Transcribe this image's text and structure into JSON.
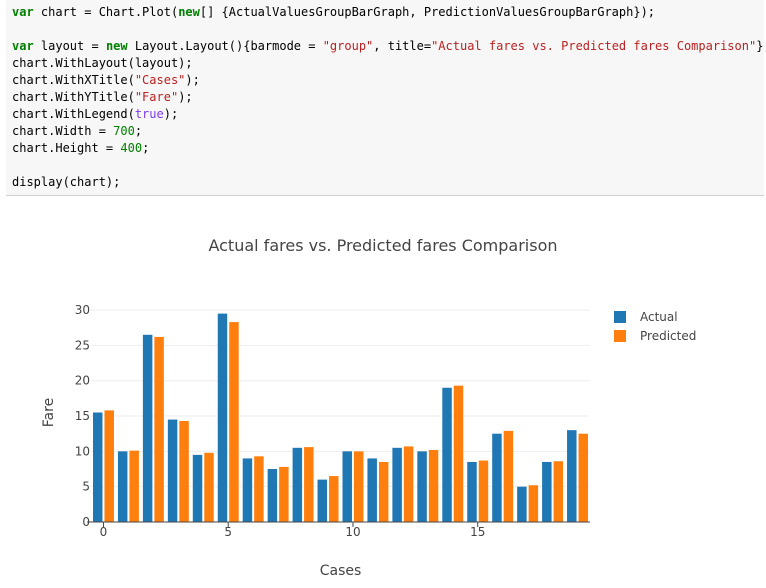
{
  "code": {
    "lines": [
      [
        {
          "t": "var",
          "c": "kw"
        },
        {
          "t": " chart = Chart.Plot(",
          "c": ""
        },
        {
          "t": "new",
          "c": "kw"
        },
        {
          "t": "[] {ActualValuesGroupBarGraph, PredictionValuesGroupBarGraph});",
          "c": ""
        }
      ],
      [
        {
          "t": "",
          "c": ""
        }
      ],
      [
        {
          "t": "var",
          "c": "kw"
        },
        {
          "t": " layout = ",
          "c": ""
        },
        {
          "t": "new",
          "c": "kw"
        },
        {
          "t": " Layout.Layout(){barmode = ",
          "c": ""
        },
        {
          "t": "\"group\"",
          "c": "str"
        },
        {
          "t": ", title=",
          "c": ""
        },
        {
          "t": "\"Actual fares vs. Predicted fares Comparison\"",
          "c": "str"
        },
        {
          "t": "};",
          "c": ""
        }
      ],
      [
        {
          "t": "chart.WithLayout(layout);",
          "c": ""
        }
      ],
      [
        {
          "t": "chart.WithXTitle(",
          "c": ""
        },
        {
          "t": "\"Cases\"",
          "c": "str"
        },
        {
          "t": ");",
          "c": ""
        }
      ],
      [
        {
          "t": "chart.WithYTitle(",
          "c": ""
        },
        {
          "t": "\"Fare\"",
          "c": "str"
        },
        {
          "t": ");",
          "c": ""
        }
      ],
      [
        {
          "t": "chart.WithLegend(",
          "c": ""
        },
        {
          "t": "true",
          "c": "builtin"
        },
        {
          "t": ");",
          "c": ""
        }
      ],
      [
        {
          "t": "chart.Width = ",
          "c": ""
        },
        {
          "t": "700",
          "c": "num"
        },
        {
          "t": ";",
          "c": ""
        }
      ],
      [
        {
          "t": "chart.Height = ",
          "c": ""
        },
        {
          "t": "400",
          "c": "num"
        },
        {
          "t": ";",
          "c": ""
        }
      ],
      [
        {
          "t": "",
          "c": ""
        }
      ],
      [
        {
          "t": "display(chart);",
          "c": ""
        }
      ]
    ]
  },
  "chart_data": {
    "type": "bar",
    "title": "Actual fares vs. Predicted fares Comparison",
    "xlabel": "Cases",
    "ylabel": "Fare",
    "barmode": "group",
    "x": [
      0,
      1,
      2,
      3,
      4,
      5,
      6,
      7,
      8,
      9,
      10,
      11,
      12,
      13,
      14,
      15,
      16,
      17,
      18,
      19
    ],
    "x_ticks": [
      0,
      5,
      10,
      15
    ],
    "ylim": [
      0,
      31
    ],
    "y_ticks": [
      0,
      5,
      10,
      15,
      20,
      25,
      30
    ],
    "grid": true,
    "legend_position": "right",
    "series": [
      {
        "name": "Actual",
        "color": "#1f77b4",
        "values": [
          15.5,
          10,
          26.5,
          14.5,
          9.5,
          29.5,
          9,
          7.5,
          10.5,
          6,
          10,
          9,
          10.5,
          10,
          19,
          8.5,
          12.5,
          5,
          8.5,
          13
        ]
      },
      {
        "name": "Predicted",
        "color": "#ff7f0e",
        "values": [
          15.8,
          10.1,
          26.2,
          14.3,
          9.8,
          28.3,
          9.3,
          7.8,
          10.6,
          6.5,
          10,
          8.5,
          10.7,
          10.2,
          19.3,
          8.7,
          12.9,
          5.2,
          8.6,
          12.5
        ]
      }
    ]
  }
}
